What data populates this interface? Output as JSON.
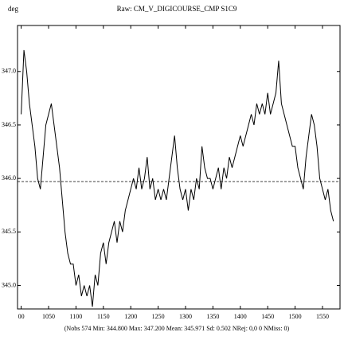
{
  "chart_data": {
    "type": "line",
    "title": "Raw: CM_V_DIGICOURSE_CMP S1C9",
    "y_label": "deg",
    "footer": "(Nobs 574 Min: 344.800 Max: 347.200 Mean: 345.971 Sd: 0.502 NRej: 0,0 0 NMiss: 0)",
    "x": [
      1000,
      1005,
      1010,
      1015,
      1020,
      1025,
      1030,
      1035,
      1040,
      1045,
      1050,
      1055,
      1060,
      1065,
      1070,
      1075,
      1080,
      1085,
      1090,
      1095,
      1100,
      1105,
      1110,
      1115,
      1120,
      1125,
      1130,
      1135,
      1140,
      1145,
      1150,
      1155,
      1160,
      1165,
      1170,
      1175,
      1180,
      1185,
      1190,
      1195,
      1200,
      1205,
      1210,
      1215,
      1220,
      1225,
      1230,
      1235,
      1240,
      1245,
      1250,
      1255,
      1260,
      1265,
      1270,
      1275,
      1280,
      1285,
      1290,
      1295,
      1300,
      1305,
      1310,
      1315,
      1320,
      1325,
      1330,
      1335,
      1340,
      1345,
      1350,
      1355,
      1360,
      1365,
      1370,
      1375,
      1380,
      1385,
      1390,
      1395,
      1400,
      1405,
      1410,
      1415,
      1420,
      1425,
      1430,
      1435,
      1440,
      1445,
      1450,
      1455,
      1460,
      1465,
      1470,
      1475,
      1480,
      1485,
      1490,
      1495,
      1500,
      1505,
      1510,
      1515,
      1520,
      1525,
      1530,
      1535,
      1540,
      1545,
      1550,
      1555,
      1560,
      1565,
      1570
    ],
    "series": [
      {
        "color": "#000000",
        "values": [
          346.6,
          347.2,
          347.0,
          346.7,
          346.5,
          346.3,
          346.0,
          345.9,
          346.2,
          346.5,
          346.6,
          346.7,
          346.5,
          346.3,
          346.1,
          345.8,
          345.5,
          345.3,
          345.2,
          345.2,
          345.0,
          345.1,
          344.9,
          345.0,
          344.9,
          345.0,
          344.8,
          345.1,
          345.0,
          345.3,
          345.4,
          345.2,
          345.4,
          345.5,
          345.6,
          345.4,
          345.6,
          345.5,
          345.7,
          345.8,
          345.9,
          346.0,
          345.9,
          346.1,
          345.9,
          346.0,
          346.2,
          345.9,
          346.0,
          345.8,
          345.9,
          345.8,
          345.9,
          345.8,
          346.0,
          346.2,
          346.4,
          346.1,
          345.9,
          345.8,
          345.9,
          345.7,
          345.9,
          345.8,
          346.0,
          345.9,
          346.3,
          346.1,
          346.0,
          346.0,
          345.9,
          346.0,
          346.1,
          345.9,
          346.1,
          346.0,
          346.2,
          346.1,
          346.2,
          346.3,
          346.4,
          346.3,
          346.4,
          346.5,
          346.6,
          346.5,
          346.7,
          346.6,
          346.7,
          346.6,
          346.8,
          346.6,
          346.7,
          346.8,
          347.1,
          346.7,
          346.6,
          346.5,
          346.4,
          346.3,
          346.3,
          346.1,
          346.0,
          345.9,
          346.2,
          346.4,
          346.6,
          346.5,
          346.3,
          346.0,
          345.9,
          345.8,
          345.9,
          345.7,
          345.6
        ]
      }
    ],
    "mean_line": 345.971,
    "xlim": [
      993.3,
      1582
    ],
    "ylim": [
      344.78,
      347.43
    ],
    "xticks": [
      {
        "value": 1000,
        "label": "00"
      },
      1050,
      1100,
      1150,
      1200,
      1250,
      1300,
      1350,
      1400,
      1450,
      1500,
      1550
    ],
    "yticks": [
      {
        "value": 345,
        "label": "345.0"
      },
      345.5,
      {
        "value": 346,
        "label": "346.0"
      },
      346.5,
      {
        "value": 347,
        "label": "347.0"
      }
    ],
    "grid": false
  }
}
